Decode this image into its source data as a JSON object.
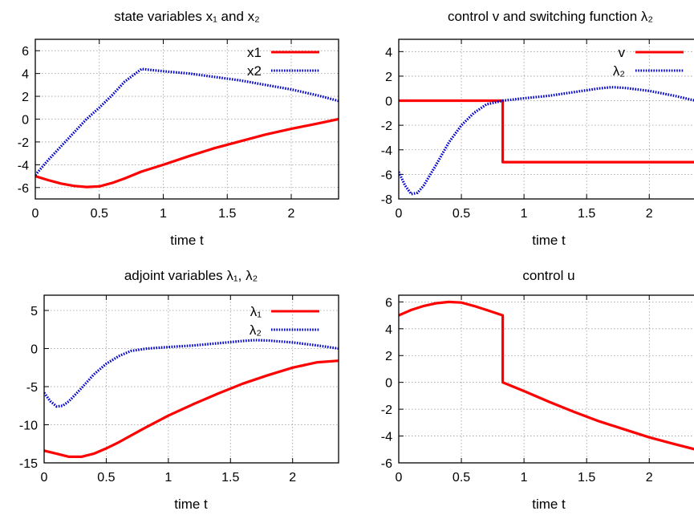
{
  "chart_data": [
    {
      "type": "line",
      "title": "state variables  x₁  and  x₂",
      "xlabel": "time  t",
      "ylabel": "",
      "xlim": [
        0,
        2.37
      ],
      "ylim": [
        -7,
        7
      ],
      "xticks": [
        0,
        0.5,
        1,
        1.5,
        2
      ],
      "xtick_labels": [
        "0",
        "0.5",
        "1",
        "1.5",
        "2"
      ],
      "yticks": [
        -6,
        -4,
        -2,
        0,
        2,
        4,
        6
      ],
      "ytick_labels": [
        "-6",
        "-4",
        "-2",
        "0",
        "2",
        "4",
        "6"
      ],
      "grid": true,
      "legend": "top-right",
      "series": [
        {
          "name": "x1",
          "color": "#ff0000",
          "style": "solid",
          "x": [
            0,
            0.1,
            0.2,
            0.3,
            0.4,
            0.5,
            0.6,
            0.7,
            0.83,
            1.0,
            1.2,
            1.4,
            1.6,
            1.8,
            2.0,
            2.2,
            2.37
          ],
          "y": [
            -5.0,
            -5.35,
            -5.65,
            -5.85,
            -5.95,
            -5.9,
            -5.6,
            -5.2,
            -4.6,
            -4.0,
            -3.25,
            -2.55,
            -1.95,
            -1.35,
            -0.85,
            -0.4,
            0.0
          ]
        },
        {
          "name": "x2",
          "color": "#0000cc",
          "style": "dotted",
          "x": [
            0,
            0.1,
            0.2,
            0.3,
            0.4,
            0.5,
            0.6,
            0.7,
            0.83,
            1.0,
            1.2,
            1.4,
            1.6,
            1.8,
            2.0,
            2.2,
            2.37
          ],
          "y": [
            -4.9,
            -3.6,
            -2.4,
            -1.2,
            0.0,
            1.0,
            2.1,
            3.3,
            4.4,
            4.2,
            4.0,
            3.7,
            3.4,
            3.0,
            2.6,
            2.1,
            1.6
          ]
        }
      ]
    },
    {
      "type": "line",
      "title": "control  v  and switching function  λ₂",
      "xlabel": "time  t",
      "ylabel": "",
      "xlim": [
        0,
        2.37
      ],
      "ylim": [
        -8,
        5
      ],
      "xticks": [
        0,
        0.5,
        1,
        1.5,
        2
      ],
      "xtick_labels": [
        "0",
        "0.5",
        "1",
        "1.5",
        "2"
      ],
      "yticks": [
        -8,
        -6,
        -4,
        -2,
        0,
        2,
        4
      ],
      "ytick_labels": [
        "-8",
        "-6",
        "-4",
        "-2",
        "0",
        "2",
        "4"
      ],
      "grid": true,
      "legend": "top-right",
      "series": [
        {
          "name": "v",
          "color": "#ff0000",
          "style": "solid",
          "x": [
            0,
            0.83,
            0.83,
            2.37
          ],
          "y": [
            0,
            0,
            -5,
            -5
          ]
        },
        {
          "name": "λ₂",
          "color": "#0000cc",
          "style": "dotted",
          "x": [
            0,
            0.05,
            0.1,
            0.15,
            0.2,
            0.3,
            0.4,
            0.5,
            0.6,
            0.7,
            0.83,
            1.0,
            1.2,
            1.4,
            1.6,
            1.7,
            1.8,
            2.0,
            2.2,
            2.37
          ],
          "y": [
            -5.8,
            -6.9,
            -7.6,
            -7.5,
            -6.9,
            -5.2,
            -3.4,
            -2.0,
            -1.0,
            -0.3,
            0.0,
            0.2,
            0.4,
            0.7,
            1.0,
            1.1,
            1.05,
            0.8,
            0.4,
            0.0
          ]
        }
      ]
    },
    {
      "type": "line",
      "title": "adjoint variables  λ₁, λ₂",
      "xlabel": "time  t",
      "ylabel": "",
      "xlim": [
        0,
        2.37
      ],
      "ylim": [
        -15,
        7
      ],
      "xticks": [
        0,
        0.5,
        1,
        1.5,
        2
      ],
      "xtick_labels": [
        "0",
        "0.5",
        "1",
        "1.5",
        "2"
      ],
      "yticks": [
        -15,
        -10,
        -5,
        0,
        5
      ],
      "ytick_labels": [
        "-15",
        "-10",
        "-5",
        "0",
        "5"
      ],
      "grid": true,
      "legend": "top-right",
      "series": [
        {
          "name": "λ₁",
          "color": "#ff0000",
          "style": "solid",
          "x": [
            0,
            0.1,
            0.2,
            0.3,
            0.4,
            0.5,
            0.6,
            0.8,
            1.0,
            1.2,
            1.4,
            1.6,
            1.8,
            2.0,
            2.2,
            2.37
          ],
          "y": [
            -13.4,
            -13.8,
            -14.2,
            -14.2,
            -13.8,
            -13.1,
            -12.3,
            -10.5,
            -8.8,
            -7.3,
            -5.9,
            -4.6,
            -3.5,
            -2.5,
            -1.8,
            -1.6
          ]
        },
        {
          "name": "λ₂",
          "color": "#0000cc",
          "style": "dotted",
          "x": [
            0,
            0.05,
            0.1,
            0.15,
            0.2,
            0.3,
            0.4,
            0.5,
            0.6,
            0.7,
            0.83,
            1.0,
            1.2,
            1.4,
            1.6,
            1.7,
            1.8,
            2.0,
            2.2,
            2.37
          ],
          "y": [
            -5.8,
            -6.9,
            -7.6,
            -7.5,
            -6.9,
            -5.2,
            -3.4,
            -2.0,
            -1.0,
            -0.3,
            0.0,
            0.2,
            0.4,
            0.7,
            1.0,
            1.1,
            1.05,
            0.8,
            0.4,
            0.0
          ]
        }
      ]
    },
    {
      "type": "line",
      "title": "control  u",
      "xlabel": "time  t",
      "ylabel": "",
      "xlim": [
        0,
        2.37
      ],
      "ylim": [
        -6,
        6.5
      ],
      "xticks": [
        0,
        0.5,
        1,
        1.5,
        2
      ],
      "xtick_labels": [
        "0",
        "0.5",
        "1",
        "1.5",
        "2"
      ],
      "yticks": [
        -6,
        -4,
        -2,
        0,
        2,
        4,
        6
      ],
      "ytick_labels": [
        "-6",
        "-4",
        "-2",
        "0",
        "2",
        "4",
        "6"
      ],
      "grid": true,
      "legend": "none",
      "series": [
        {
          "name": "",
          "color": "#ff0000",
          "style": "solid",
          "x": [
            0,
            0.1,
            0.2,
            0.3,
            0.4,
            0.5,
            0.6,
            0.7,
            0.83,
            0.83,
            1.0,
            1.2,
            1.4,
            1.6,
            1.8,
            2.0,
            2.2,
            2.37
          ],
          "y": [
            5.0,
            5.4,
            5.7,
            5.9,
            6.0,
            5.95,
            5.7,
            5.4,
            5.0,
            0.0,
            -0.65,
            -1.45,
            -2.2,
            -2.9,
            -3.5,
            -4.1,
            -4.6,
            -5.0
          ]
        }
      ]
    }
  ]
}
